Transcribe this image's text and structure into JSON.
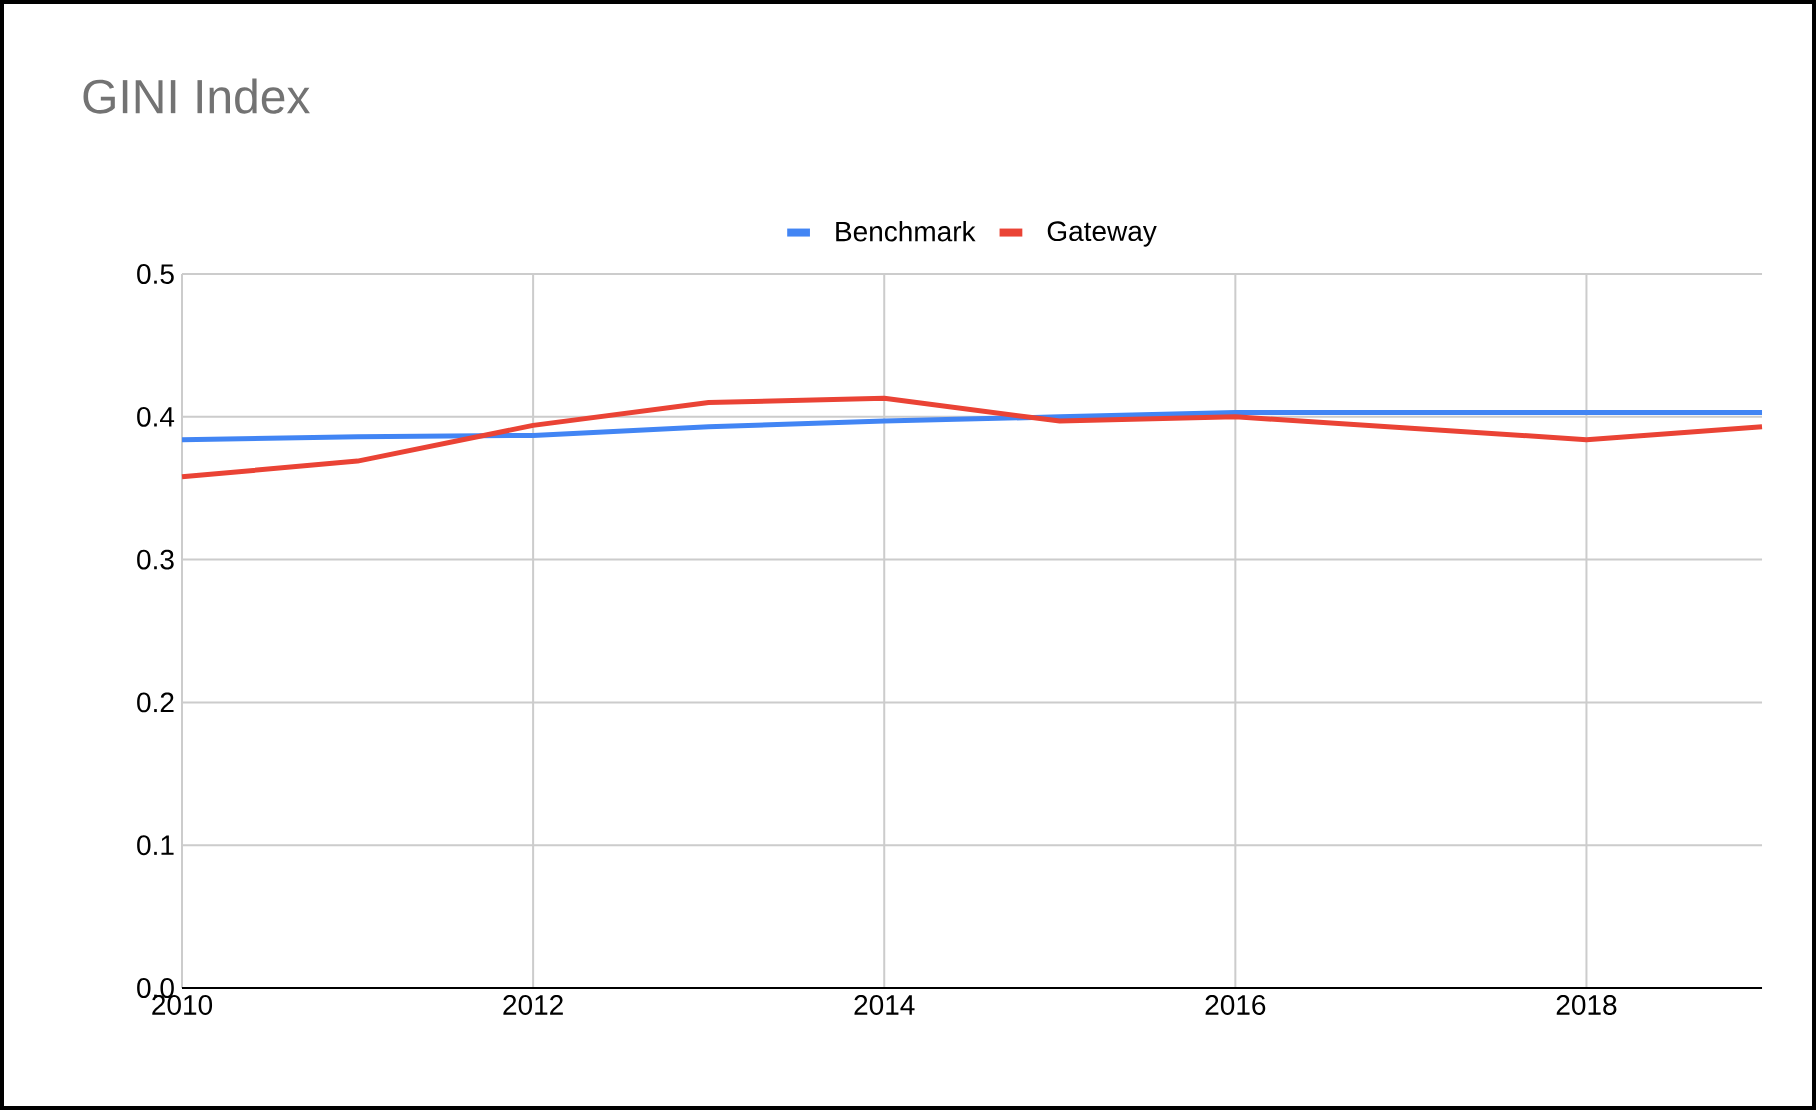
{
  "chart_data": {
    "type": "line",
    "title": "GINI Index",
    "x": [
      2010,
      2011,
      2012,
      2013,
      2014,
      2015,
      2016,
      2017,
      2018,
      2019
    ],
    "series": [
      {
        "name": "Benchmark",
        "color": "#4285f4",
        "values": [
          0.384,
          0.386,
          0.387,
          0.393,
          0.397,
          0.4,
          0.403,
          0.403,
          0.403,
          0.403
        ]
      },
      {
        "name": "Gateway",
        "color": "#ea4335",
        "values": [
          0.358,
          0.369,
          0.394,
          0.41,
          0.413,
          0.397,
          0.4,
          0.392,
          0.384,
          0.393
        ]
      }
    ],
    "xlim": [
      2010,
      2019
    ],
    "xticks": [
      2010,
      2012,
      2014,
      2016,
      2018
    ],
    "ylim": [
      0,
      0.5
    ],
    "yticks": [
      {
        "value": 0,
        "label": "0.0"
      },
      0.1,
      0.2,
      0.3,
      0.4,
      0.5
    ],
    "grid": true,
    "legend": "top",
    "marker": "none",
    "line_style": "solid"
  }
}
